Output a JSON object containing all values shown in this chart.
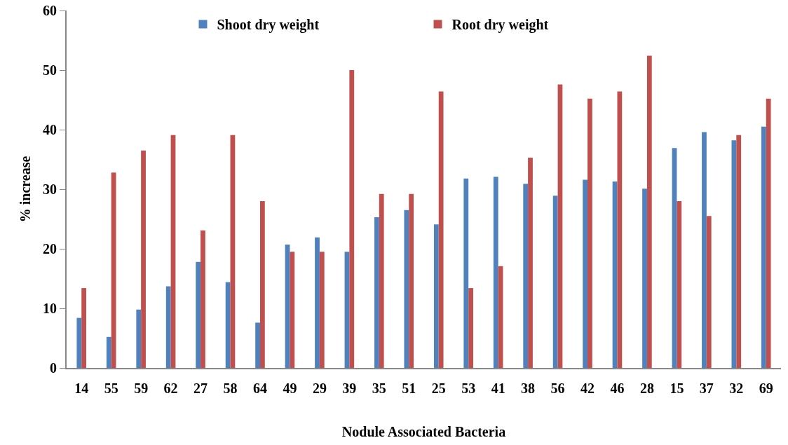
{
  "chart_data": {
    "type": "bar",
    "xlabel": "Nodule Associated Bacteria",
    "ylabel": "% increase",
    "categories": [
      "14",
      "55",
      "59",
      "62",
      "27",
      "58",
      "64",
      "49",
      "29",
      "39",
      "35",
      "51",
      "25",
      "53",
      "41",
      "38",
      "56",
      "42",
      "46",
      "28",
      "15",
      "37",
      "32",
      "69"
    ],
    "series": [
      {
        "name": "Shoot dry weight",
        "color": "#4f81bd",
        "values": [
          8.4,
          5.2,
          9.8,
          13.7,
          17.8,
          14.4,
          7.6,
          20.7,
          21.9,
          19.5,
          25.3,
          26.5,
          24.1,
          31.8,
          32.1,
          30.9,
          28.9,
          31.6,
          31.3,
          30.1,
          36.9,
          39.6,
          38.2,
          40.5
        ]
      },
      {
        "name": "Root dry weight",
        "color": "#c0504d",
        "values": [
          13.4,
          32.8,
          36.5,
          39.1,
          23.1,
          39.1,
          28.0,
          19.5,
          19.5,
          50.0,
          29.2,
          29.2,
          46.4,
          13.4,
          17.1,
          35.3,
          47.6,
          45.2,
          46.4,
          52.4,
          28.0,
          25.5,
          39.1,
          45.2
        ]
      }
    ],
    "ylim": [
      0,
      60
    ],
    "yticks": [
      0,
      10,
      20,
      30,
      40,
      50,
      60
    ],
    "grid": false,
    "legend": "top"
  }
}
